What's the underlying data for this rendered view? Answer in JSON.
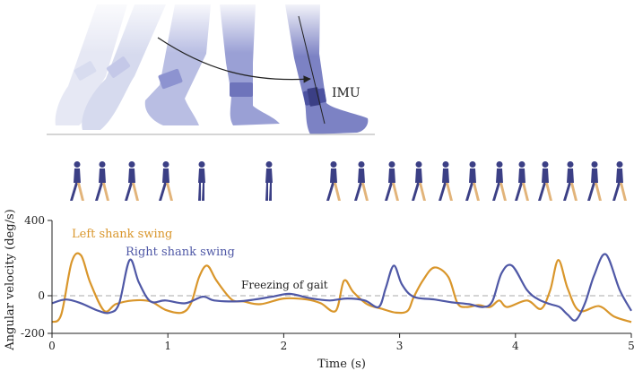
{
  "illustration": {
    "imu_label": "IMU"
  },
  "chart_data": {
    "type": "line",
    "xlabel": "Time (s)",
    "ylabel": "Angular velocity (deg/s)",
    "xlim": [
      0,
      5
    ],
    "ylim": [
      -200,
      400
    ],
    "xticks": [
      "0",
      "1",
      "2",
      "3",
      "4",
      "5"
    ],
    "yticks": [
      "400",
      "0",
      "-200"
    ],
    "reference_line": {
      "y": 0,
      "style": "dashed",
      "color": "#bbbbbb"
    },
    "annotation": {
      "text": "Freezing of gait",
      "x": 2.0,
      "y": 40
    },
    "colors": {
      "left": "#d9962b",
      "right": "#4f58a6",
      "figure": "#3b3f85",
      "figure_leg": "#e2b47a"
    },
    "series": [
      {
        "name": "Left shank swing",
        "x": [
          0,
          0.08,
          0.17,
          0.25,
          0.33,
          0.45,
          0.55,
          0.7,
          0.85,
          0.98,
          1.12,
          1.2,
          1.27,
          1.34,
          1.42,
          1.55,
          1.65,
          1.8,
          2.0,
          2.2,
          2.32,
          2.45,
          2.52,
          2.6,
          2.72,
          2.85,
          2.97,
          3.07,
          3.12,
          3.2,
          3.3,
          3.42,
          3.5,
          3.58,
          3.68,
          3.78,
          3.86,
          3.93,
          4.1,
          4.22,
          4.3,
          4.37,
          4.45,
          4.55,
          4.72,
          4.85,
          5.0
        ],
        "y": [
          -140,
          -100,
          180,
          215,
          70,
          -80,
          -45,
          -25,
          -30,
          -75,
          -90,
          -40,
          100,
          160,
          80,
          -20,
          -30,
          -45,
          -15,
          -20,
          -40,
          -80,
          80,
          20,
          -45,
          -70,
          -90,
          -80,
          -10,
          80,
          150,
          100,
          -40,
          -60,
          -50,
          -60,
          -25,
          -60,
          -25,
          -70,
          30,
          190,
          40,
          -80,
          -55,
          -110,
          -140
        ]
      },
      {
        "name": "Right shank swing",
        "x": [
          0,
          0.12,
          0.25,
          0.4,
          0.5,
          0.58,
          0.67,
          0.75,
          0.85,
          0.98,
          1.15,
          1.3,
          1.4,
          1.6,
          1.75,
          1.9,
          2.05,
          2.2,
          2.3,
          2.4,
          2.55,
          2.7,
          2.82,
          2.88,
          2.95,
          3.02,
          3.12,
          3.3,
          3.45,
          3.6,
          3.72,
          3.8,
          3.88,
          3.97,
          4.1,
          4.2,
          4.3,
          4.38,
          4.45,
          4.52,
          4.6,
          4.68,
          4.78,
          4.9,
          5.0
        ],
        "y": [
          -40,
          -20,
          -40,
          -80,
          -90,
          -40,
          190,
          70,
          -30,
          -25,
          -40,
          -5,
          -25,
          -30,
          -20,
          -5,
          10,
          -10,
          -20,
          -25,
          -15,
          -25,
          -60,
          40,
          160,
          60,
          -5,
          -20,
          -35,
          -45,
          -60,
          -30,
          120,
          160,
          30,
          -20,
          -45,
          -60,
          -100,
          -130,
          -40,
          110,
          220,
          30,
          -80
        ]
      }
    ]
  }
}
